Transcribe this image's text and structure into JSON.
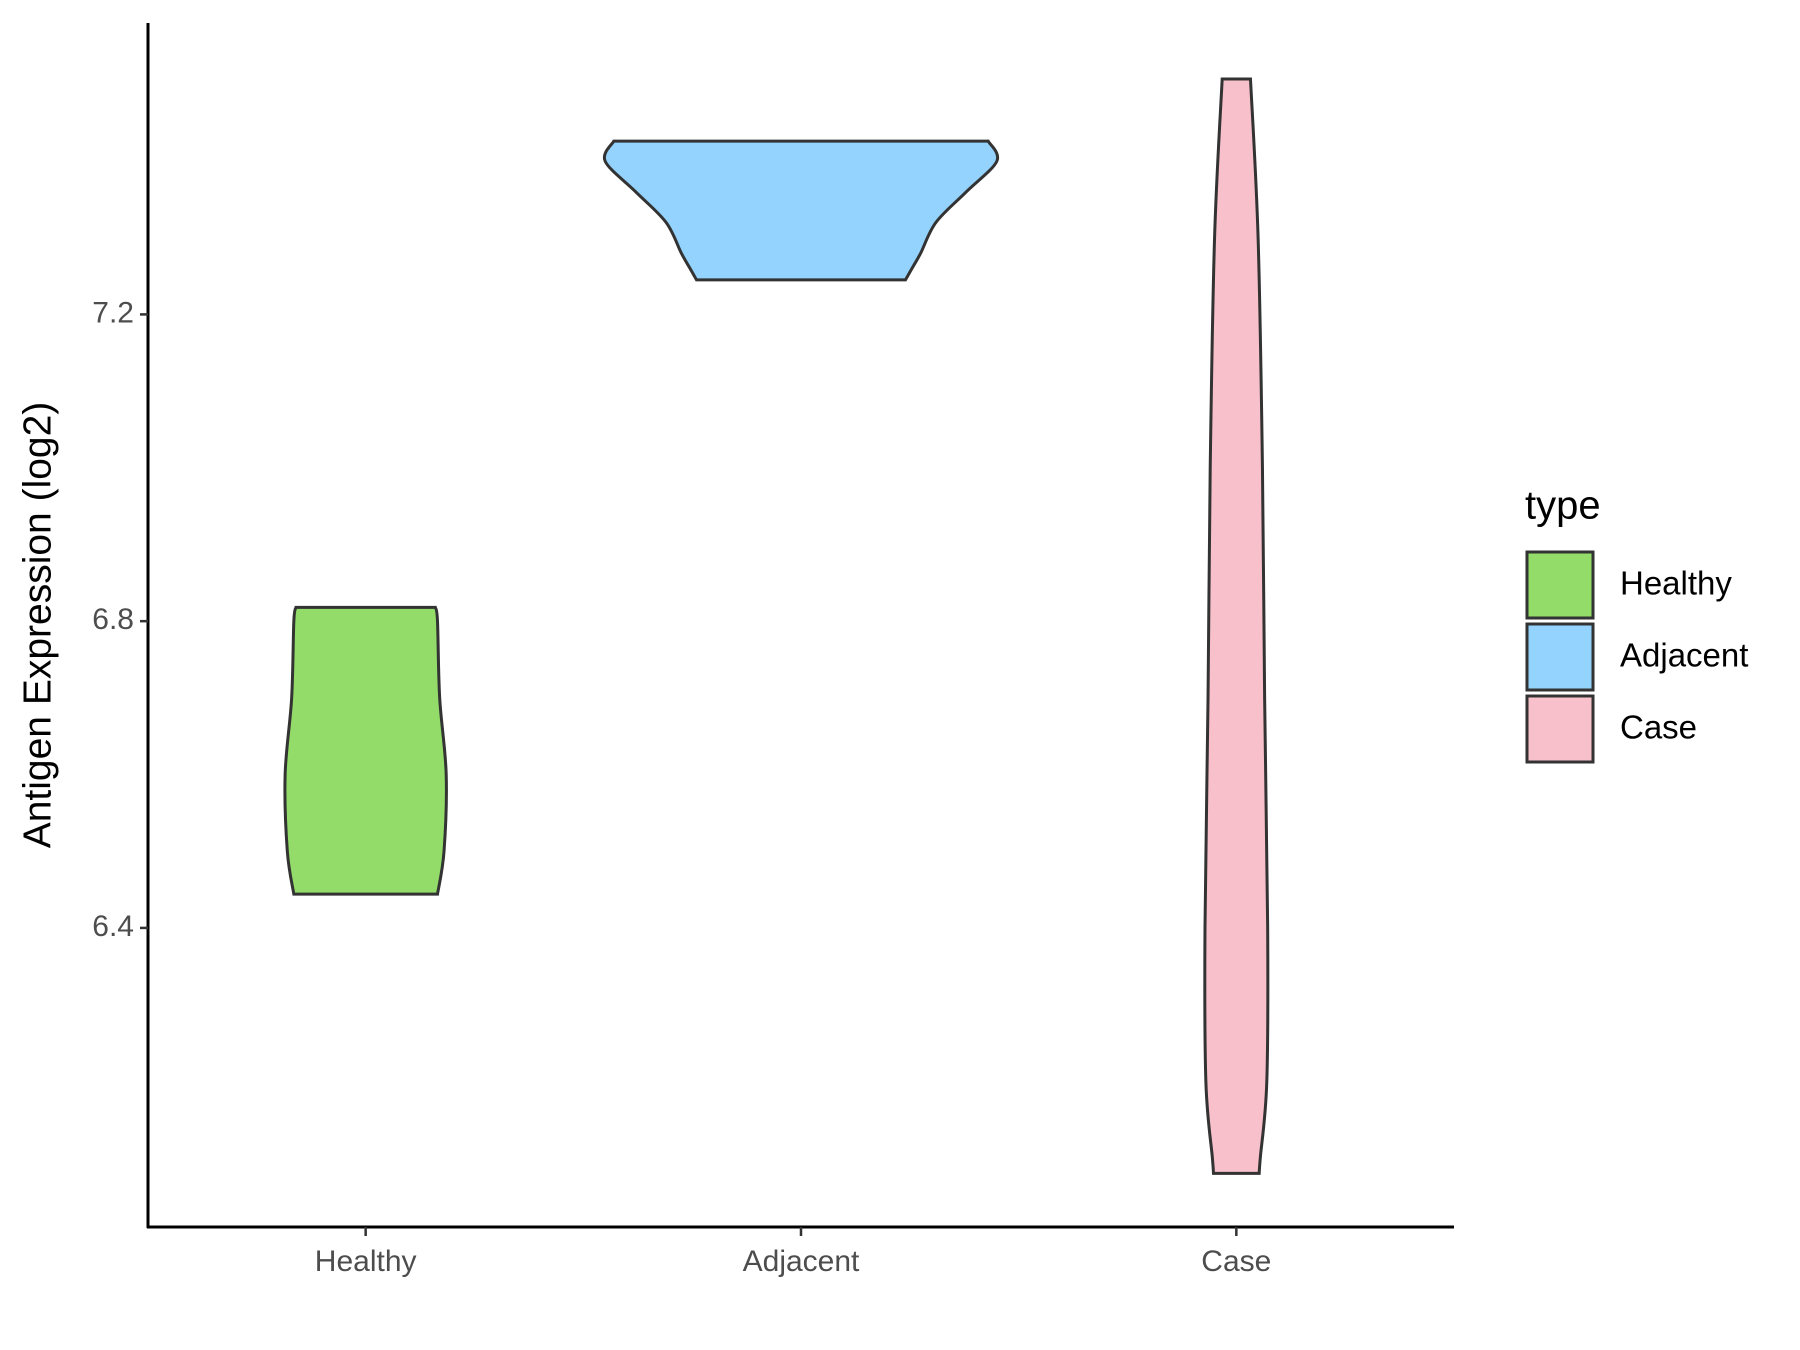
{
  "chart_data": {
    "type": "violin",
    "y_label": "Antigen Expression (log2)",
    "categories": [
      "Healthy",
      "Adjacent",
      "Case"
    ],
    "ylim": [
      6.01,
      7.58
    ],
    "yticks": [
      6.4,
      6.8,
      7.2
    ],
    "legend_title": "type",
    "legend_position": "right",
    "series": [
      {
        "name": "Healthy",
        "color": "#93dc69",
        "y": [
          6.818,
          6.8,
          6.7,
          6.6,
          6.5,
          6.444
        ],
        "widths": [
          0.32,
          0.33,
          0.34,
          0.37,
          0.36,
          0.33
        ]
      },
      {
        "name": "Adjacent",
        "color": "#93d3fd",
        "y": [
          7.426,
          7.4,
          7.36,
          7.32,
          7.28,
          7.26,
          7.245
        ],
        "widths": [
          0.86,
          0.9,
          0.76,
          0.62,
          0.55,
          0.51,
          0.48
        ]
      },
      {
        "name": "Case",
        "color": "#f7c0cb",
        "y": [
          7.507,
          7.3,
          7.0,
          6.7,
          6.4,
          6.2,
          6.1,
          6.08
        ],
        "widths": [
          0.065,
          0.1,
          0.12,
          0.13,
          0.144,
          0.14,
          0.11,
          0.105
        ]
      }
    ]
  }
}
